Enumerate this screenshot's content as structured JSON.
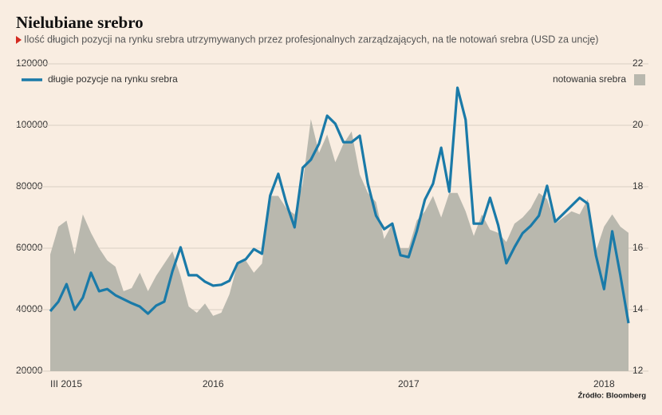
{
  "chart_data": {
    "type": "line",
    "title": "Nielubiane srebro",
    "subtitle": "Ilość długich pozycji na rynku srebra utrzymywanych przez profesjonalnych zarządzających, na tle notowań srebra (USD za uncję)",
    "source": "Źródło: Bloomberg",
    "categories": [
      "III 2015",
      null,
      null,
      null,
      null,
      null,
      null,
      null,
      null,
      null,
      null,
      null,
      null,
      null,
      null,
      null,
      null,
      null,
      null,
      null,
      "2016",
      null,
      null,
      null,
      null,
      null,
      null,
      null,
      null,
      null,
      null,
      null,
      null,
      null,
      null,
      null,
      null,
      null,
      null,
      null,
      null,
      null,
      null,
      null,
      "2017",
      null,
      null,
      null,
      null,
      null,
      null,
      null,
      null,
      null,
      null,
      null,
      null,
      null,
      null,
      null,
      null,
      null,
      null,
      null,
      null,
      null,
      null,
      null,
      "2018",
      null,
      null,
      null
    ],
    "series": [
      {
        "name": "długie pozycje na rynku srebra",
        "color": "#1a7aa8",
        "type": "line",
        "values": [
          39500,
          42600,
          48300,
          40000,
          43900,
          52000,
          46000,
          46700,
          44700,
          43400,
          42100,
          41000,
          38700,
          41300,
          42600,
          52500,
          60300,
          51200,
          51200,
          49100,
          47800,
          48100,
          49400,
          55100,
          56400,
          59700,
          58200,
          77100,
          84200,
          74500,
          66800,
          86200,
          88800,
          94000,
          103100,
          100500,
          94500,
          94500,
          96600,
          81000,
          70600,
          66200,
          68000,
          57700,
          57100,
          65500,
          75800,
          81000,
          92700,
          78400,
          112200,
          101800,
          68000,
          68000,
          76400,
          67500,
          55100,
          60300,
          64900,
          67300,
          70600,
          80300,
          68600,
          71200,
          73800,
          76400,
          74500,
          57700,
          46700,
          65500,
          51200,
          35600
        ]
      },
      {
        "name": "notowania srebra",
        "color": "#b9b8ae",
        "type": "area",
        "axis": "y2",
        "values": [
          15.8,
          16.7,
          16.9,
          15.8,
          17.1,
          16.5,
          16.0,
          15.6,
          15.4,
          14.6,
          14.7,
          15.2,
          14.6,
          15.1,
          15.5,
          15.9,
          15.1,
          14.1,
          13.9,
          14.2,
          13.8,
          13.9,
          14.5,
          15.5,
          15.6,
          15.2,
          15.5,
          17.7,
          17.7,
          17.3,
          17.1,
          18.1,
          20.2,
          19.1,
          19.7,
          18.8,
          19.4,
          19.8,
          18.4,
          17.8,
          17.5,
          16.3,
          16.8,
          16.0,
          16.0,
          16.9,
          17.2,
          17.7,
          17.0,
          17.8,
          17.8,
          17.2,
          16.4,
          17.1,
          16.6,
          16.5,
          16.2,
          16.8,
          17.0,
          17.3,
          17.8,
          17.6,
          16.8,
          17.0,
          17.2,
          17.1,
          17.6,
          15.9,
          16.7,
          17.1,
          16.7,
          16.5
        ]
      }
    ],
    "ylim": [
      20000,
      120000
    ],
    "yticks": [
      20000,
      40000,
      60000,
      80000,
      100000,
      120000
    ],
    "y2lim": [
      12,
      22
    ],
    "y2ticks": [
      12,
      14,
      16,
      18,
      20,
      22
    ],
    "grid": true
  }
}
